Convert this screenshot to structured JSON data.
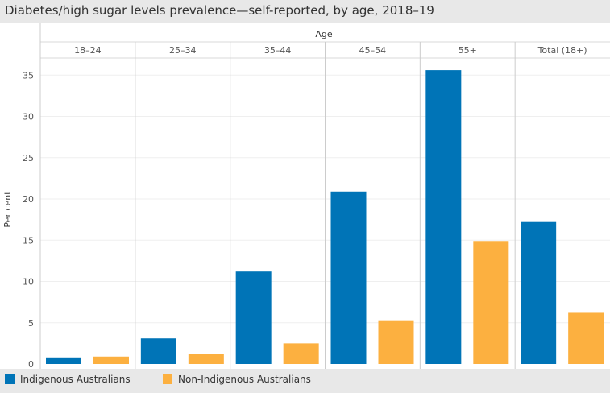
{
  "title": "Diabetes/high sugar levels prevalence—self-reported, by age, 2018–19",
  "chart_data": {
    "type": "bar",
    "xlabel": "Age",
    "ylabel": "Per cent",
    "categories": [
      "18–24",
      "25–34",
      "35–44",
      "45–54",
      "55+",
      "Total (18+)"
    ],
    "ylim": [
      0,
      37
    ],
    "yticks": [
      0,
      5,
      10,
      15,
      20,
      25,
      30,
      35
    ],
    "grid": true,
    "legend": "bottom-left",
    "series": [
      {
        "name": "Indigenous Australians",
        "color": "#0074b7",
        "values": [
          0.8,
          3.1,
          11.2,
          20.9,
          35.6,
          17.2
        ]
      },
      {
        "name": "Non-Indigenous Australians",
        "color": "#fcb040",
        "values": [
          0.9,
          1.2,
          2.5,
          5.3,
          14.9,
          6.2
        ]
      }
    ]
  }
}
